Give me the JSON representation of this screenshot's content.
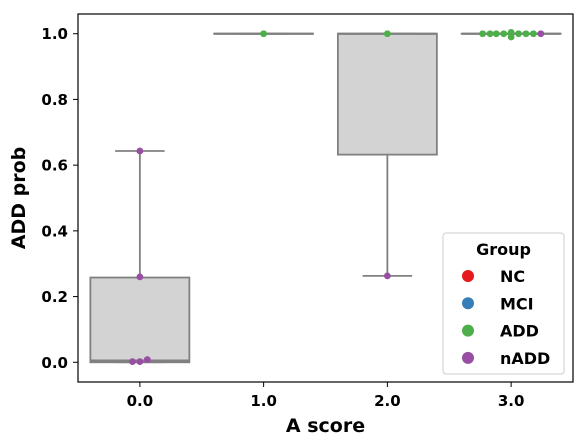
{
  "chart_data": {
    "type": "box",
    "xlabel": "A score",
    "ylabel": "ADD prob",
    "categories": [
      "0.0",
      "1.0",
      "2.0",
      "3.0"
    ],
    "ylim": [
      -0.06,
      1.06
    ],
    "yticks": [
      0.0,
      0.2,
      0.4,
      0.6,
      0.8,
      1.0
    ],
    "ytick_labels": [
      "0.0",
      "0.2",
      "0.4",
      "0.6",
      "0.8",
      "1.0"
    ],
    "box_color": "#d3d3d3",
    "box_edge_color": "#808080",
    "boxes": [
      {
        "category": "0.0",
        "q1": 0.0,
        "median": 0.005,
        "q3": 0.258,
        "whisker_low": 0.0,
        "whisker_high": 0.643
      },
      {
        "category": "1.0",
        "q1": 1.0,
        "median": 1.0,
        "q3": 1.0,
        "whisker_low": 1.0,
        "whisker_high": 1.0
      },
      {
        "category": "2.0",
        "q1": 0.632,
        "median": 1.0,
        "q3": 1.0,
        "whisker_low": 0.263,
        "whisker_high": 1.0
      },
      {
        "category": "3.0",
        "q1": 1.0,
        "median": 1.0,
        "q3": 1.0,
        "whisker_low": 1.0,
        "whisker_high": 1.0
      }
    ],
    "points": [
      {
        "category": "0.0",
        "offset": 0.0,
        "y": 0.643,
        "group": "nADD"
      },
      {
        "category": "0.0",
        "offset": 0.0,
        "y": 0.26,
        "group": "nADD"
      },
      {
        "category": "0.0",
        "offset": 0.06,
        "y": 0.008,
        "group": "nADD"
      },
      {
        "category": "0.0",
        "offset": -0.06,
        "y": 0.002,
        "group": "nADD"
      },
      {
        "category": "0.0",
        "offset": 0.0,
        "y": 0.002,
        "group": "nADD"
      },
      {
        "category": "1.0",
        "offset": 0.0,
        "y": 1.0,
        "group": "ADD"
      },
      {
        "category": "2.0",
        "offset": 0.0,
        "y": 1.0,
        "group": "ADD"
      },
      {
        "category": "2.0",
        "offset": 0.0,
        "y": 0.263,
        "group": "nADD"
      },
      {
        "category": "3.0",
        "offset": -0.23,
        "y": 1.0,
        "group": "ADD"
      },
      {
        "category": "3.0",
        "offset": -0.17,
        "y": 1.0,
        "group": "ADD"
      },
      {
        "category": "3.0",
        "offset": -0.12,
        "y": 1.0,
        "group": "ADD"
      },
      {
        "category": "3.0",
        "offset": -0.06,
        "y": 1.0,
        "group": "ADD"
      },
      {
        "category": "3.0",
        "offset": 0.0,
        "y": 1.004,
        "group": "ADD"
      },
      {
        "category": "3.0",
        "offset": 0.0,
        "y": 0.99,
        "group": "ADD"
      },
      {
        "category": "3.0",
        "offset": 0.06,
        "y": 1.0,
        "group": "ADD"
      },
      {
        "category": "3.0",
        "offset": 0.12,
        "y": 1.0,
        "group": "ADD"
      },
      {
        "category": "3.0",
        "offset": 0.18,
        "y": 1.0,
        "group": "ADD"
      },
      {
        "category": "3.0",
        "offset": 0.24,
        "y": 1.0,
        "group": "nADD"
      }
    ],
    "legend": {
      "title": "Group",
      "placement": "lower-right",
      "entries": [
        {
          "label": "NC",
          "color": "#e41a1c"
        },
        {
          "label": "MCI",
          "color": "#377eb8"
        },
        {
          "label": "ADD",
          "color": "#4daf4a"
        },
        {
          "label": "nADD",
          "color": "#984ea3"
        }
      ]
    }
  }
}
